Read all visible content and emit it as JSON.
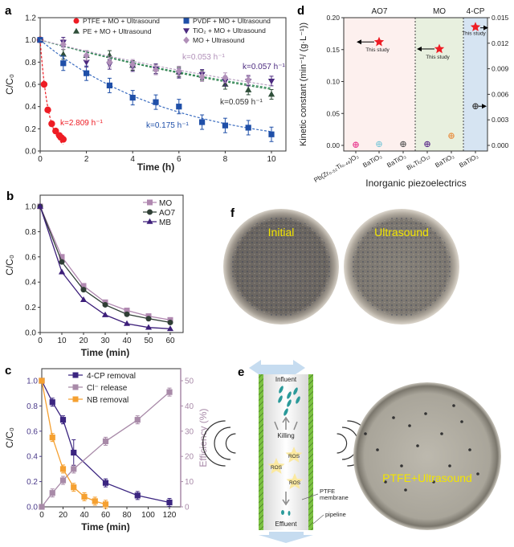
{
  "panel_labels": {
    "a": "a",
    "b": "b",
    "c": "c",
    "d": "d",
    "e": "e",
    "f": "f"
  },
  "chart_data": [
    {
      "id": "a",
      "type": "scatter",
      "xlabel": "Time (h)",
      "ylabel": "C/C₀",
      "xlim": [
        0,
        10.5
      ],
      "ylim": [
        0,
        1.2
      ],
      "xticks": [
        0,
        2,
        4,
        6,
        8,
        10
      ],
      "yticks": [
        "0.0",
        "0.2",
        "0.4",
        "0.6",
        "0.8",
        "1.0",
        "1.2"
      ],
      "legend_placement": "top",
      "series": [
        {
          "name": "PTFE + MO + Ultrasound",
          "color": "#ee1c24",
          "marker": "circle",
          "x": [
            0,
            0.17,
            0.33,
            0.5,
            0.67,
            0.83,
            0.92,
            1
          ],
          "y": [
            1,
            0.6,
            0.37,
            0.245,
            0.18,
            0.14,
            0.12,
            0.105
          ],
          "k": 2.809,
          "k_label": "k=2.809 h⁻¹"
        },
        {
          "name": "PE + MO + Ultrasound",
          "color": "#2f4f3a",
          "marker": "triangle",
          "x": [
            0,
            1,
            2,
            3,
            4,
            5,
            6,
            7,
            8,
            9,
            10
          ],
          "y": [
            1,
            0.87,
            0.86,
            0.86,
            0.77,
            0.74,
            0.71,
            0.68,
            0.6,
            0.55,
            0.51
          ],
          "k": 0.059,
          "k_label": "k=0.059 h⁻¹"
        },
        {
          "name": "PVDF + MO + Ultrasound",
          "color": "#1f4fa8",
          "marker": "square",
          "x": [
            0,
            1,
            2,
            3,
            4,
            5,
            6,
            7,
            8,
            9,
            10
          ],
          "y": [
            1,
            0.79,
            0.7,
            0.59,
            0.48,
            0.44,
            0.4,
            0.26,
            0.23,
            0.21,
            0.15
          ],
          "k": 0.175,
          "k_label": "k=0.175 h⁻¹"
        },
        {
          "name": "TiO₂ + MO + Ultrasound",
          "color": "#4b2a7f",
          "marker": "invtriangle",
          "x": [
            1,
            2,
            3,
            4,
            5,
            6,
            7,
            8,
            9,
            10
          ],
          "y": [
            0.98,
            0.8,
            0.78,
            0.76,
            0.74,
            0.7,
            0.69,
            0.63,
            0.63,
            0.63
          ],
          "k": 0.057,
          "k_label": "k=0.057 h⁻¹"
        },
        {
          "name": "MO + Ultrasound",
          "color": "#b08fb8",
          "marker": "diamond",
          "x": [
            1,
            2,
            3,
            4,
            5,
            6,
            7,
            8,
            9
          ],
          "y": [
            0.96,
            0.86,
            0.8,
            0.78,
            0.73,
            0.72,
            0.67,
            0.66,
            0.64
          ],
          "k": 0.053,
          "k_label": "k=0.053 h⁻¹"
        }
      ]
    },
    {
      "id": "b",
      "type": "line",
      "xlabel": "Time (min)",
      "ylabel": "C/C₀",
      "xlim": [
        0,
        63
      ],
      "ylim": [
        0,
        1.1
      ],
      "xticks": [
        0,
        10,
        20,
        30,
        40,
        50,
        60
      ],
      "yticks": [
        "0.0",
        "0.2",
        "0.4",
        "0.6",
        "0.8",
        "1.0"
      ],
      "legend_placement": "top-right",
      "series": [
        {
          "name": "MO",
          "color": "#b088b0",
          "marker": "square",
          "x": [
            0,
            10,
            20,
            30,
            40,
            50,
            60
          ],
          "y": [
            1,
            0.6,
            0.37,
            0.24,
            0.175,
            0.13,
            0.1
          ]
        },
        {
          "name": "AO7",
          "color": "#2f3f35",
          "marker": "circle",
          "x": [
            0,
            10,
            20,
            30,
            40,
            50,
            60
          ],
          "y": [
            1,
            0.56,
            0.34,
            0.22,
            0.145,
            0.11,
            0.08
          ]
        },
        {
          "name": "MB",
          "color": "#3d1f7a",
          "marker": "triangle",
          "x": [
            0,
            10,
            20,
            30,
            40,
            50,
            60
          ],
          "y": [
            1,
            0.48,
            0.26,
            0.14,
            0.07,
            0.04,
            0.03
          ]
        }
      ]
    },
    {
      "id": "c",
      "type": "line",
      "xlabel": "Time (min)",
      "ylabel": "C/C₀",
      "ylabel_right": "Efficiency (%)",
      "xlim": [
        0,
        126
      ],
      "ylim": [
        0,
        1.1
      ],
      "ylim_right": [
        0,
        55
      ],
      "xticks": [
        0,
        20,
        40,
        60,
        80,
        100,
        120
      ],
      "yticks": [
        "0.0",
        "0.2",
        "0.4",
        "0.6",
        "0.8",
        "1.0"
      ],
      "yticks_right": [
        0,
        10,
        20,
        30,
        40,
        50
      ],
      "legend_placement": "top",
      "series": [
        {
          "name": "4-CP removal",
          "color": "#3b2580",
          "marker": "square",
          "axis": "left",
          "x": [
            0,
            10,
            20,
            30,
            60,
            90,
            120
          ],
          "y": [
            1,
            0.83,
            0.69,
            0.43,
            0.19,
            0.09,
            0.035
          ]
        },
        {
          "name": "Cl⁻ release",
          "color": "#a88aa8",
          "marker": "square",
          "axis": "right",
          "x": [
            0,
            10,
            20,
            30,
            60,
            90,
            120
          ],
          "y": [
            0,
            5.5,
            10.5,
            15,
            26,
            34.5,
            45.5
          ]
        },
        {
          "name": "NB removal",
          "color": "#f5a030",
          "marker": "square",
          "axis": "left",
          "x": [
            0,
            10,
            20,
            30,
            40,
            50,
            60
          ],
          "y": [
            1,
            0.55,
            0.3,
            0.155,
            0.08,
            0.045,
            0.02
          ]
        }
      ]
    },
    {
      "id": "d",
      "type": "scatter",
      "xlabel": "Inorganic piezoelectrics",
      "ylabel": "Kinetic constant (min⁻¹/ (g·L⁻¹))",
      "ylim": [
        0,
        0.2
      ],
      "ylim_right": [
        0,
        0.015
      ],
      "yticks": [
        "0.00",
        "0.05",
        "0.10",
        "0.15",
        "0.20"
      ],
      "yticks_right": [
        "0.000",
        "0.003",
        "0.006",
        "0.009",
        "0.012",
        "0.015"
      ],
      "groups": [
        {
          "name": "AO7",
          "color": "#fdf0ee"
        },
        {
          "name": "MO",
          "color": "#e8f0df"
        },
        {
          "name": "4-CP",
          "color": "#d6e4f2"
        }
      ],
      "categories": [
        "Pb(Zr₀.₅₂Ti₀.₄₈)O₃",
        "BaTiO₃",
        "BaTiO₃",
        "Bi₄Ti₃O₁₂",
        "BaTiO₃",
        "BaTiO₃"
      ],
      "points": [
        {
          "category": 0,
          "value": 0.001,
          "axis": "left",
          "color": "#e8308a"
        },
        {
          "category": 1,
          "value": 0.002,
          "axis": "left",
          "color": "#7ec8d8"
        },
        {
          "category": 2,
          "value": 0.002,
          "axis": "left",
          "color": "#555555"
        },
        {
          "category": 3,
          "value": 0.002,
          "axis": "left",
          "color": "#5a2a8a"
        },
        {
          "category": 4,
          "value": 0.015,
          "axis": "left",
          "color": "#e88a3a"
        },
        {
          "category": 5,
          "value": 0.0046,
          "axis": "right",
          "color": "#333333"
        }
      ],
      "this_study": [
        {
          "group": "AO7",
          "value": 0.162,
          "axis": "left",
          "label": "This study"
        },
        {
          "group": "MO",
          "value": 0.151,
          "axis": "left",
          "label": "This study"
        },
        {
          "group": "4-CP",
          "value": 0.0139,
          "axis": "right",
          "label": "This study"
        }
      ]
    }
  ],
  "photos_f": {
    "left_label": "Initial",
    "right_label": "Ultrasound"
  },
  "diagram_e": {
    "influent": "Influent",
    "killing": "Killing",
    "ros": [
      "ROS",
      "ROS",
      "ROS"
    ],
    "membrane": "PTFE",
    "membrane2": "membrane",
    "pipeline": "pipeline",
    "effluent": "Effluent"
  },
  "photo_e": {
    "label": "PTFE+Ultrasound"
  }
}
